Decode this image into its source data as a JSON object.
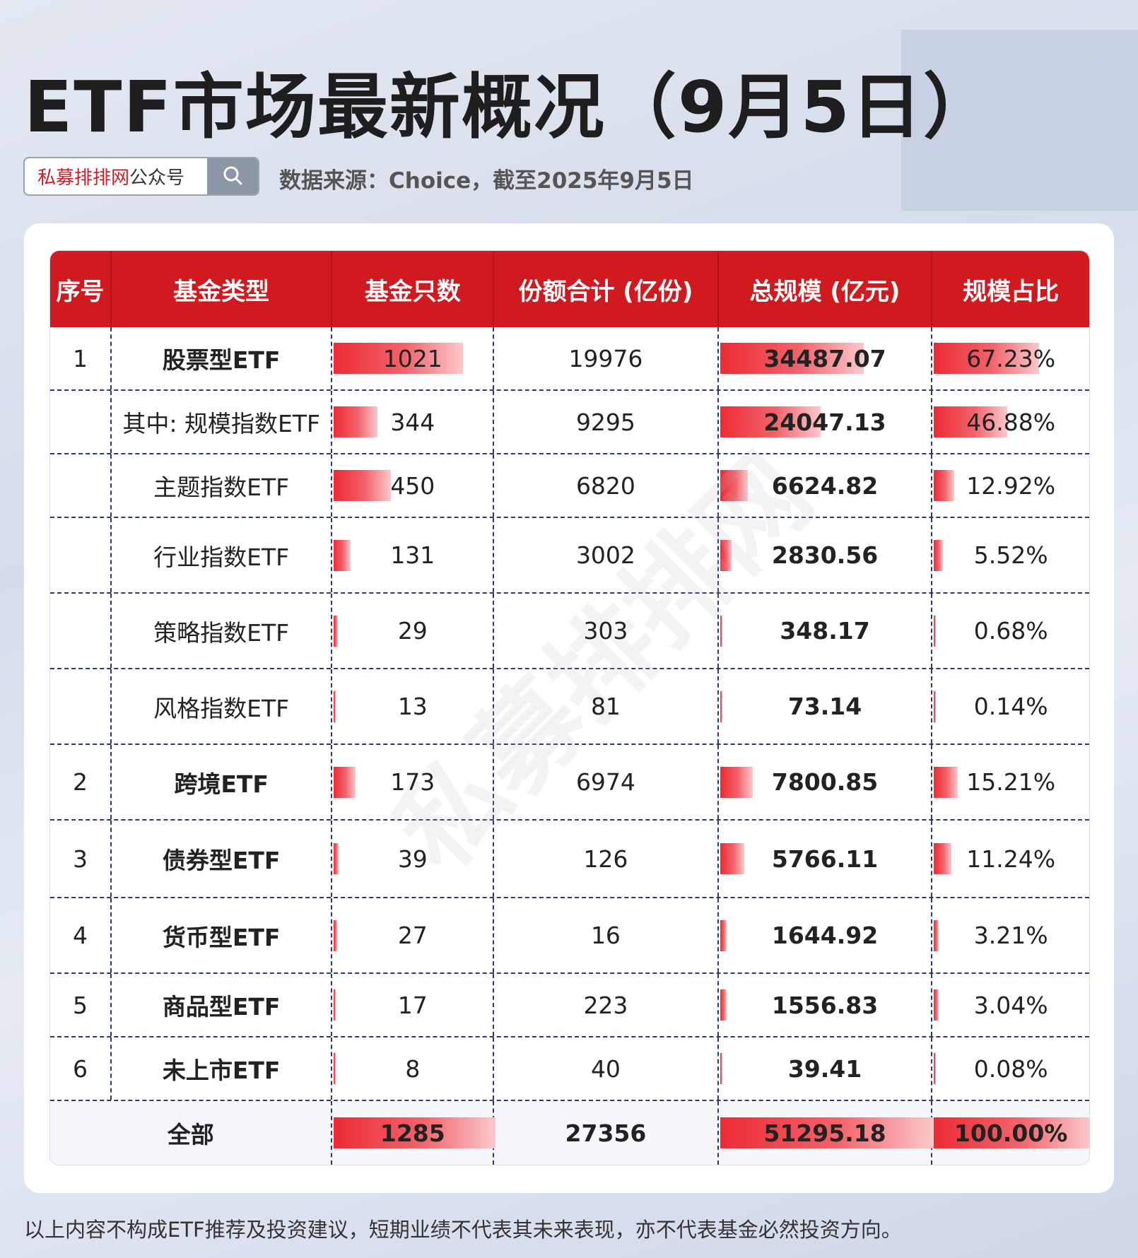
{
  "title": "ETF市场最新概况（9月5日）",
  "search": {
    "brand": "私募排排网",
    "brand_suffix": "公众号",
    "icon": "search-icon"
  },
  "source": "数据来源：Choice，截至2025年9月5日",
  "colors": {
    "header_bg": "#d11a1f",
    "bar_start": "#ec2b35",
    "bar_end": "#fbc9cc"
  },
  "table": {
    "headers": [
      "序号",
      "基金类型",
      "基金只数",
      "份额合计 (亿份)",
      "总规模 (亿元)",
      "规模占比"
    ],
    "rows": [
      {
        "seq": "1",
        "type": "股票型ETF",
        "count": "1021",
        "shares": "19976",
        "scale": "34487.07",
        "ratio": "67.23%",
        "bold": true,
        "count_frac": 0.795,
        "scale_frac": 0.672,
        "ratio_frac": 0.672
      },
      {
        "seq": "",
        "type": "其中: 规模指数ETF",
        "count": "344",
        "shares": "9295",
        "scale": "24047.13",
        "ratio": "46.88%",
        "bold": false,
        "count_frac": 0.268,
        "scale_frac": 0.469,
        "ratio_frac": 0.469
      },
      {
        "seq": "",
        "type": "主题指数ETF",
        "count": "450",
        "shares": "6820",
        "scale": "6624.82",
        "ratio": "12.92%",
        "bold": false,
        "count_frac": 0.35,
        "scale_frac": 0.129,
        "ratio_frac": 0.129
      },
      {
        "seq": "",
        "type": "行业指数ETF",
        "count": "131",
        "shares": "3002",
        "scale": "2830.56",
        "ratio": "5.52%",
        "bold": false,
        "count_frac": 0.102,
        "scale_frac": 0.055,
        "ratio_frac": 0.055
      },
      {
        "seq": "",
        "type": "策略指数ETF",
        "count": "29",
        "shares": "303",
        "scale": "348.17",
        "ratio": "0.68%",
        "bold": false,
        "count_frac": 0.023,
        "scale_frac": 0.007,
        "ratio_frac": 0.007
      },
      {
        "seq": "",
        "type": "风格指数ETF",
        "count": "13",
        "shares": "81",
        "scale": "73.14",
        "ratio": "0.14%",
        "bold": false,
        "count_frac": 0.01,
        "scale_frac": 0.0014,
        "ratio_frac": 0.0014
      },
      {
        "seq": "2",
        "type": "跨境ETF",
        "count": "173",
        "shares": "6974",
        "scale": "7800.85",
        "ratio": "15.21%",
        "bold": true,
        "count_frac": 0.135,
        "scale_frac": 0.152,
        "ratio_frac": 0.152
      },
      {
        "seq": "3",
        "type": "债券型ETF",
        "count": "39",
        "shares": "126",
        "scale": "5766.11",
        "ratio": "11.24%",
        "bold": true,
        "count_frac": 0.03,
        "scale_frac": 0.112,
        "ratio_frac": 0.112
      },
      {
        "seq": "4",
        "type": "货币型ETF",
        "count": "27",
        "shares": "16",
        "scale": "1644.92",
        "ratio": "3.21%",
        "bold": true,
        "count_frac": 0.021,
        "scale_frac": 0.032,
        "ratio_frac": 0.032
      },
      {
        "seq": "5",
        "type": "商品型ETF",
        "count": "17",
        "shares": "223",
        "scale": "1556.83",
        "ratio": "3.04%",
        "bold": true,
        "count_frac": 0.013,
        "scale_frac": 0.03,
        "ratio_frac": 0.03
      },
      {
        "seq": "6",
        "type": "未上市ETF",
        "count": "8",
        "shares": "40",
        "scale": "39.41",
        "ratio": "0.08%",
        "bold": true,
        "count_frac": 0.006,
        "scale_frac": 0.0008,
        "ratio_frac": 0.0008
      }
    ],
    "total": {
      "label": "全部",
      "count": "1285",
      "shares": "27356",
      "scale": "51295.18",
      "ratio": "100.00%",
      "count_frac": 1.0,
      "scale_frac": 1.0,
      "ratio_frac": 1.0
    }
  },
  "watermark": "私募排排网",
  "footer": "以上内容不构成ETF推荐及投资建议，短期业绩不代表其未来表现，亦不代表基金必然投资方向。"
}
